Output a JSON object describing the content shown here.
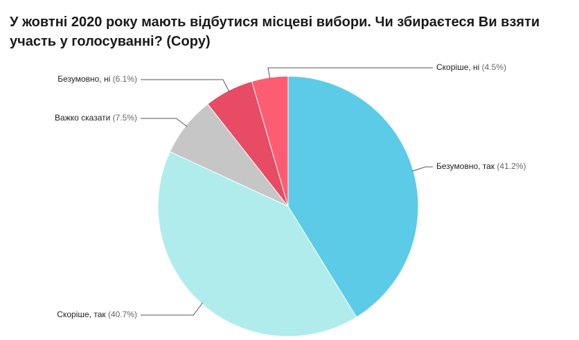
{
  "chart_data": {
    "type": "pie",
    "title": "У жовтні 2020 року мають відбутися місцеві вибори. Чи збираєтеся Ви взяти участь у голосуванні? (Copy)",
    "categories": [
      "Безумовно, так",
      "Скоріше, так",
      "Важко сказати",
      "Безумовно, ні",
      "Скоріше, ні"
    ],
    "values": [
      41.2,
      40.7,
      7.5,
      6.1,
      4.5
    ],
    "value_labels": [
      "(41.2%)",
      "(40.7%)",
      "(7.5%)",
      "(6.1%)",
      "(4.5%)"
    ],
    "colors": [
      "#5bcbe8",
      "#b1ecec",
      "#c6c6c6",
      "#e84b64",
      "#fd5d72"
    ]
  }
}
